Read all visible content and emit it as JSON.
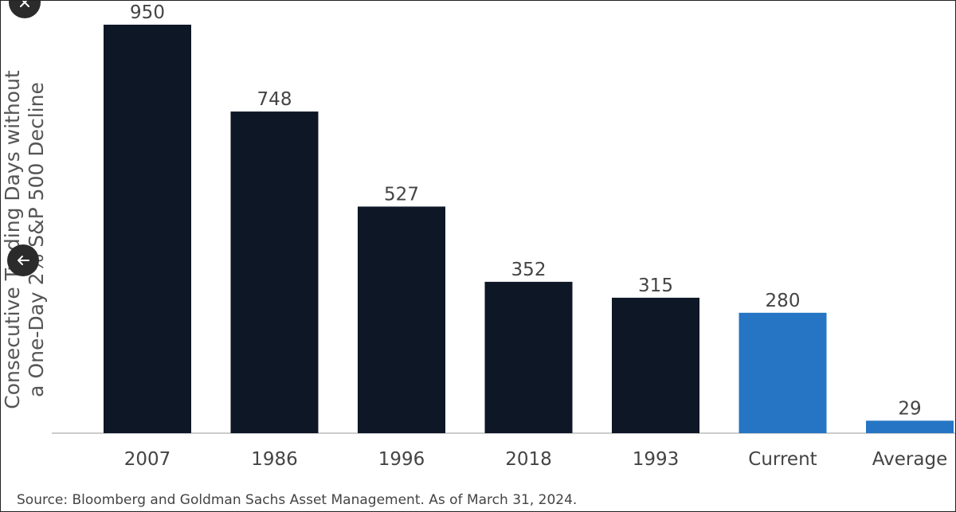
{
  "chart_data": {
    "type": "bar",
    "title": "",
    "ylabel": "Consecutive Trading Days without a One-Day 2% S&P 500 Decline",
    "xlabel": "",
    "categories": [
      "2007",
      "1986",
      "1996",
      "2018",
      "1993",
      "Current",
      "Average"
    ],
    "values": [
      950,
      748,
      527,
      352,
      315,
      280,
      29
    ],
    "data_labels": [
      "950",
      "748",
      "527",
      "352",
      "315",
      "280",
      "29"
    ],
    "ylim": [
      0,
      950
    ],
    "grid": false,
    "colors": {
      "historical": "#0d1726",
      "current": "#2575c4",
      "average": "#2575c4"
    },
    "bar_colors": [
      "#0d1726",
      "#0d1726",
      "#0d1726",
      "#0d1726",
      "#0d1726",
      "#2575c4",
      "#2575c4"
    ]
  },
  "ylabel_lines": [
    "Consecutive Trading Days without",
    "a One-Day 2% S&P 500 Decline"
  ],
  "source": "Source: Bloomberg and Goldman Sachs Asset Management. As of March 31, 2024.",
  "controls": {
    "close_icon": "close-icon",
    "back_icon": "arrow-left-icon"
  }
}
